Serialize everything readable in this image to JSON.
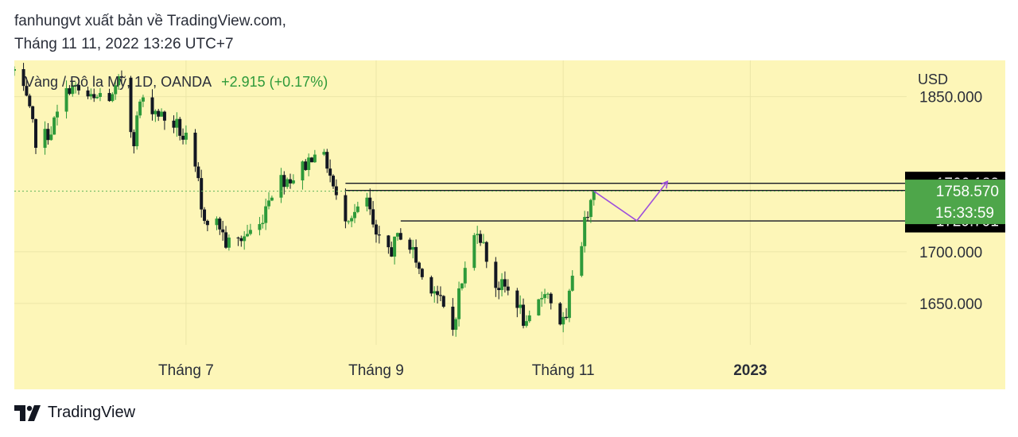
{
  "header": {
    "line1": "fanhungvt xuất bản về TradingView.com,",
    "line2": "Tháng 11 11, 2022 13:26 UTC+7"
  },
  "footer": {
    "logo_text": "TradingView",
    "logo_icon": "tradingview-logo-icon"
  },
  "colors": {
    "background": "#fdf6b8",
    "up": "#2e9a3a",
    "down": "#131722",
    "last_price_label": "#4ea64a",
    "projection": "#9d4edd",
    "dotted_price_line": "#5fb35a",
    "hline": "#131722"
  },
  "chart_data": {
    "type": "candlestick",
    "symbol_label": "Vàng / Đô la Mỹ, 1D, OANDA",
    "change_label": "+2.915 (+0.17%)",
    "currency": "USD",
    "ylim": [
      1610,
      1885
    ],
    "y_ticks": [
      1650,
      1700,
      1850
    ],
    "y_tick_labels": [
      "1650.000",
      "1700.000",
      "1850.000"
    ],
    "x_ticks": [
      {
        "date": "2022-07-01",
        "label": "Tháng 7",
        "bold": false
      },
      {
        "date": "2022-09-01",
        "label": "Tháng 9",
        "bold": false
      },
      {
        "date": "2022-11-01",
        "label": "Tháng 11",
        "bold": false
      },
      {
        "date": "2023-01-01",
        "label": "2023",
        "bold": true
      }
    ],
    "x_range": [
      "2022-05-06",
      "2023-02-21"
    ],
    "grid": true,
    "anchors": [
      [
        "2022-05-06",
        1875
      ],
      [
        "2022-05-10",
        1845
      ],
      [
        "2022-05-13",
        1808
      ],
      [
        "2022-05-16",
        1812
      ],
      [
        "2022-05-18",
        1818
      ],
      [
        "2022-05-24",
        1860
      ],
      [
        "2022-05-27",
        1855
      ],
      [
        "2022-06-01",
        1845
      ],
      [
        "2022-06-03",
        1852
      ],
      [
        "2022-06-07",
        1848
      ],
      [
        "2022-06-10",
        1870
      ],
      [
        "2022-06-13",
        1820
      ],
      [
        "2022-06-14",
        1810
      ],
      [
        "2022-06-16",
        1845
      ],
      [
        "2022-06-20",
        1840
      ],
      [
        "2022-06-24",
        1828
      ],
      [
        "2022-06-28",
        1822
      ],
      [
        "2022-06-30",
        1810
      ],
      [
        "2022-07-01",
        1808
      ],
      [
        "2022-07-05",
        1765
      ],
      [
        "2022-07-06",
        1737
      ],
      [
        "2022-07-12",
        1725
      ],
      [
        "2022-07-14",
        1708
      ],
      [
        "2022-07-18",
        1710
      ],
      [
        "2022-07-21",
        1718
      ],
      [
        "2022-07-25",
        1725
      ],
      [
        "2022-07-28",
        1755
      ],
      [
        "2022-08-01",
        1770
      ],
      [
        "2022-08-05",
        1772
      ],
      [
        "2022-08-10",
        1788
      ],
      [
        "2022-08-12",
        1800
      ],
      [
        "2022-08-16",
        1785
      ],
      [
        "2022-08-19",
        1750
      ],
      [
        "2022-08-22",
        1736
      ],
      [
        "2022-08-26",
        1738
      ],
      [
        "2022-08-29",
        1750
      ],
      [
        "2022-09-01",
        1710
      ],
      [
        "2022-09-06",
        1702
      ],
      [
        "2022-09-09",
        1718
      ],
      [
        "2022-09-13",
        1700
      ],
      [
        "2022-09-16",
        1675
      ],
      [
        "2022-09-20",
        1665
      ],
      [
        "2022-09-23",
        1643
      ],
      [
        "2022-09-26",
        1625
      ],
      [
        "2022-09-28",
        1660
      ],
      [
        "2022-10-04",
        1725
      ],
      [
        "2022-10-07",
        1695
      ],
      [
        "2022-10-10",
        1668
      ],
      [
        "2022-10-13",
        1665
      ],
      [
        "2022-10-17",
        1652
      ],
      [
        "2022-10-20",
        1625
      ],
      [
        "2022-10-24",
        1650
      ],
      [
        "2022-10-26",
        1665
      ],
      [
        "2022-10-31",
        1633
      ],
      [
        "2022-11-02",
        1630
      ],
      [
        "2022-11-04",
        1680
      ],
      [
        "2022-11-07",
        1712
      ],
      [
        "2022-11-10",
        1755
      ],
      [
        "2022-11-11",
        1758.57
      ]
    ],
    "last_price": 1758.57,
    "last_price_label": "1758.570",
    "countdown": "15:33:59",
    "horizontal_lines": [
      {
        "price": 1766.182,
        "label": "1766.182",
        "from_date": "2022-08-22"
      },
      {
        "price": 1759.28,
        "label": "1759.280",
        "from_date": "2022-08-22"
      },
      {
        "price": 1729.791,
        "label": "1729.791",
        "from_date": "2022-09-09"
      }
    ],
    "projection_path": [
      [
        "2022-11-11",
        1758.57
      ],
      [
        "2022-11-25",
        1730
      ],
      [
        "2022-12-05",
        1768
      ]
    ]
  }
}
